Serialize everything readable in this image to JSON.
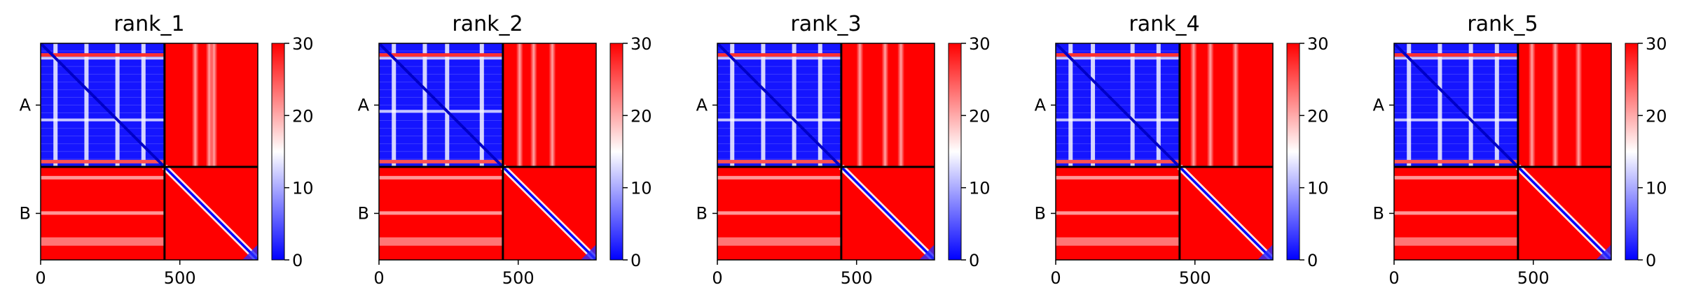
{
  "chart_data": {
    "type": "heatmap",
    "residue_count": 780,
    "chain_boundary": 445,
    "chains": [
      "A",
      "B"
    ],
    "x_ticks": [
      0,
      500
    ],
    "colorbar": {
      "min": 0,
      "max": 30,
      "ticks": [
        0,
        10,
        20,
        30
      ],
      "colors": [
        "#0000ff",
        "#ffffff",
        "#ff0000"
      ]
    },
    "panels": [
      {
        "title": "rank_1",
        "a_bands": [
          0.12,
          0.37,
          0.62,
          0.83
        ],
        "cross_bands": [
          0.33,
          0.48,
          0.53
        ]
      },
      {
        "title": "rank_2",
        "a_bands": [
          0.12,
          0.37,
          0.55,
          0.83
        ],
        "cross_bands": [
          0.18,
          0.33,
          0.53
        ]
      },
      {
        "title": "rank_3",
        "a_bands": [
          0.12,
          0.37,
          0.62,
          0.83
        ],
        "cross_bands": [
          0.2,
          0.47,
          0.64
        ]
      },
      {
        "title": "rank_4",
        "a_bands": [
          0.12,
          0.3,
          0.62,
          0.83
        ],
        "cross_bands": [
          0.15,
          0.33,
          0.6
        ]
      },
      {
        "title": "rank_5",
        "a_bands": [
          0.12,
          0.37,
          0.62,
          0.83
        ],
        "cross_bands": [
          0.15,
          0.4,
          0.65
        ]
      }
    ]
  }
}
